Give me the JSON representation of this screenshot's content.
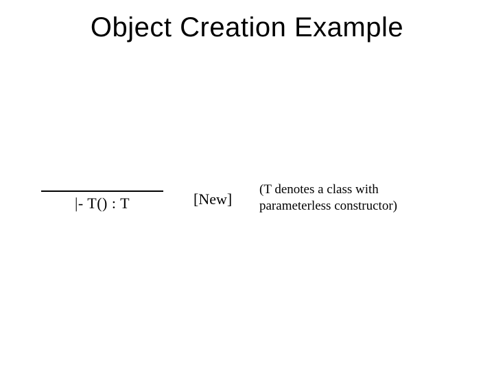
{
  "title": "Object Creation Example",
  "rule": {
    "conclusion": "|- T() : T",
    "label": "[New]",
    "side_condition_line1": "(T denotes a class with",
    "side_condition_line2": "parameterless constructor)"
  },
  "colors": {
    "background": "#ffffff",
    "text": "#000000",
    "rule_line": "#000000"
  },
  "typography": {
    "title_fontsize": 40,
    "body_fontsize": 22,
    "side_fontsize": 19,
    "title_font": "Arial",
    "body_font": "Comic Sans MS"
  }
}
